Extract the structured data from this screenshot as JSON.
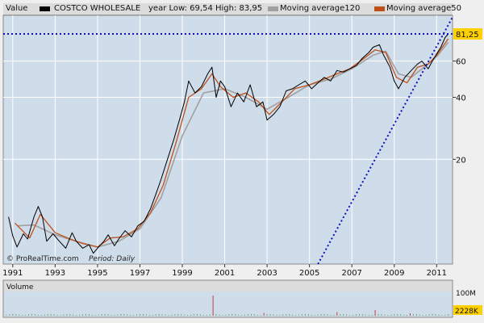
{
  "header": {
    "value_label": "Value",
    "security_name": "COSTCO WHOLESALE",
    "year_range": "year Low: 69,54 High: 83,95",
    "ma120_label": "Moving average120",
    "ma50_label": "Moving average50"
  },
  "colors": {
    "price": "#000000",
    "ma120": "#a0a0a0",
    "ma50": "#c0501a",
    "trendline": "#1010c0",
    "plot_bg": "#cfdcea",
    "last_badge": "#ffd000"
  },
  "source": "© ProRealTime.com",
  "period_label": "Period: Daily",
  "last_value_label": "81,25",
  "volume": {
    "label": "Volume",
    "tick_100m": "100M",
    "last_label": "2228K"
  },
  "chart_data": {
    "type": "line",
    "title": "COSTCO WHOLESALE",
    "x_ticks": [
      "1991",
      "1993",
      "1995",
      "1997",
      "1999",
      "2001",
      "2003",
      "2005",
      "2007",
      "2009",
      "2011"
    ],
    "y_ticks": [
      20,
      40,
      60
    ],
    "y_scale": "log",
    "xlim": [
      1990.55,
      2011.75
    ],
    "ylim": [
      6.2,
      100
    ],
    "last_value": 81.25,
    "year_low": 69.54,
    "year_high": 83.95,
    "series": [
      {
        "name": "Value",
        "x": [
          1990.8,
          1991.0,
          1991.2,
          1991.5,
          1991.7,
          1992.0,
          1992.2,
          1992.4,
          1992.6,
          1992.9,
          1993.2,
          1993.5,
          1993.8,
          1994.0,
          1994.3,
          1994.6,
          1994.8,
          1995.0,
          1995.3,
          1995.5,
          1995.8,
          1996.0,
          1996.3,
          1996.6,
          1996.9,
          1997.2,
          1997.5,
          1997.8,
          1998.0,
          1998.3,
          1998.6,
          1998.9,
          1999.1,
          1999.3,
          1999.6,
          1999.9,
          2000.2,
          2000.4,
          2000.6,
          2000.8,
          2001.0,
          2001.3,
          2001.6,
          2001.9,
          2002.2,
          2002.5,
          2002.8,
          2003.0,
          2003.3,
          2003.6,
          2003.9,
          2004.2,
          2004.5,
          2004.8,
          2005.1,
          2005.4,
          2005.7,
          2006.0,
          2006.3,
          2006.6,
          2006.9,
          2007.2,
          2007.5,
          2007.8,
          2008.0,
          2008.3,
          2008.5,
          2008.8,
          2009.0,
          2009.2,
          2009.5,
          2009.8,
          2010.1,
          2010.3,
          2010.6,
          2010.8,
          2011.0,
          2011.2,
          2011.4,
          2011.55
        ],
        "y": [
          10.5,
          8.5,
          7.5,
          8.7,
          8.2,
          10.5,
          11.8,
          10.5,
          8.0,
          8.7,
          8.0,
          7.4,
          8.8,
          8.0,
          7.4,
          7.7,
          7.0,
          7.4,
          8.0,
          8.6,
          7.6,
          8.2,
          9.0,
          8.4,
          9.5,
          10.0,
          11.5,
          14.0,
          16.0,
          20.0,
          25.0,
          32.0,
          38.0,
          48.0,
          42.0,
          45.0,
          52.0,
          56.0,
          40.0,
          48.0,
          45.0,
          36.0,
          42.0,
          38.0,
          46.0,
          36.0,
          38.0,
          31.0,
          33.0,
          36.0,
          43.0,
          44.0,
          46.0,
          48.0,
          44.0,
          47.0,
          50.0,
          48.0,
          54.0,
          53.0,
          55.0,
          57.0,
          62.0,
          66.0,
          70.0,
          72.0,
          64.0,
          56.0,
          48.0,
          44.0,
          50.0,
          54.0,
          58.0,
          60.0,
          55.0,
          60.0,
          65.0,
          70.0,
          78.0,
          81.25
        ]
      },
      {
        "name": "Moving average120",
        "x": [
          1991.2,
          1992.0,
          1993.0,
          1994.0,
          1995.0,
          1996.0,
          1997.0,
          1998.0,
          1999.0,
          2000.0,
          2001.0,
          2002.0,
          2003.0,
          2004.0,
          2005.0,
          2006.0,
          2007.0,
          2008.0,
          2008.6,
          2009.2,
          2009.8,
          2010.5,
          2011.0,
          2011.55
        ],
        "y": [
          9.5,
          9.6,
          8.6,
          8.0,
          7.5,
          8.0,
          9.2,
          13.0,
          26.0,
          42.0,
          44.0,
          40.0,
          35.0,
          40.0,
          46.0,
          49.0,
          55.0,
          64.0,
          67.0,
          52.0,
          50.0,
          57.0,
          63.0,
          74.0
        ]
      },
      {
        "name": "Moving average50",
        "x": [
          1991.1,
          1991.8,
          1992.3,
          1993.0,
          1993.7,
          1994.3,
          1995.0,
          1995.6,
          1996.2,
          1996.9,
          1997.5,
          1998.1,
          1998.7,
          1999.3,
          1999.9,
          2000.4,
          2000.8,
          2001.4,
          2002.0,
          2002.6,
          2003.1,
          2003.7,
          2004.3,
          2005.0,
          2005.7,
          2006.3,
          2006.9,
          2007.5,
          2008.1,
          2008.6,
          2009.1,
          2009.6,
          2010.1,
          2010.6,
          2011.0,
          2011.55
        ],
        "y": [
          9.8,
          8.3,
          10.8,
          8.8,
          8.2,
          7.8,
          7.5,
          8.3,
          8.4,
          9.2,
          11.0,
          15.0,
          24.0,
          40.0,
          44.0,
          52.0,
          45.0,
          40.0,
          42.0,
          38.0,
          33.0,
          38.0,
          44.0,
          46.0,
          49.0,
          52.0,
          55.0,
          61.0,
          68.0,
          66.0,
          50.0,
          47.0,
          56.0,
          58.0,
          64.0,
          77.0
        ]
      }
    ],
    "horizontal_line": 81.25,
    "trendline": {
      "x": [
        2005.4,
        2011.75
      ],
      "y": [
        6.2,
        98.0
      ]
    },
    "volume_ylim": [
      0,
      120
    ],
    "volume_unit": "M"
  }
}
